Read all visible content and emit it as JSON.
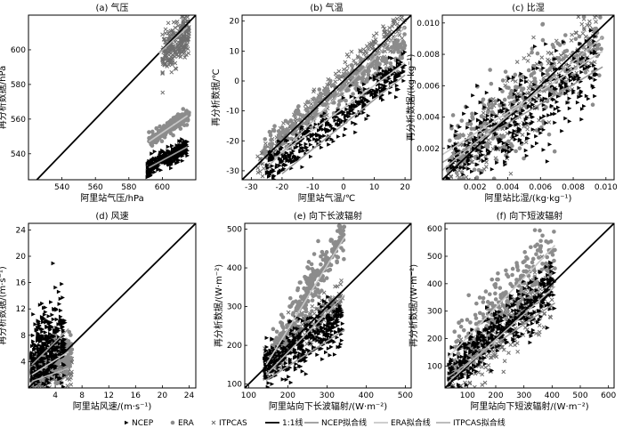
{
  "legend": [
    {
      "key": "ncep",
      "label": "NCEP",
      "kind": "marker",
      "marker": "triangle",
      "color": "#000000"
    },
    {
      "key": "era",
      "label": "ERA",
      "kind": "marker",
      "marker": "circle",
      "color": "#8c8c8c"
    },
    {
      "key": "itp",
      "label": "ITPCAS",
      "kind": "marker",
      "marker": "cross",
      "color": "#6e6e6e"
    },
    {
      "key": "one",
      "label": "1:1线",
      "kind": "line",
      "color": "#000000"
    },
    {
      "key": "ncepfit",
      "label": "NCEP拟合线",
      "kind": "line",
      "color": "#9a9a9a"
    },
    {
      "key": "erafit",
      "label": "ERA拟合线",
      "kind": "line",
      "color": "#c8c8c8"
    },
    {
      "key": "itpfit",
      "label": "ITPCAS拟合线",
      "kind": "line",
      "color": "#b4b4b4"
    }
  ],
  "chart_data": [
    {
      "id": "a",
      "type": "scatter",
      "title": "(a) 气压",
      "xlabel": "阿里站气压/hPa",
      "ylabel": "再分析数据/hPa",
      "xlim": [
        520,
        620
      ],
      "ylim": [
        525,
        620
      ],
      "xticks": [
        540,
        560,
        580,
        600
      ],
      "yticks": [
        540,
        560,
        580,
        600
      ],
      "xtick_labels": [
        "540",
        "560",
        "580",
        "600"
      ],
      "ytick_labels": [
        "540",
        "560",
        "580",
        "600"
      ],
      "series": [
        {
          "key": "itp",
          "cluster": {
            "x": [
              600,
              616
            ],
            "y_at_x0": 596,
            "slope": 1.0,
            "spread": 6,
            "n": 260
          }
        },
        {
          "key": "era",
          "cluster": {
            "x": [
              592,
              616
            ],
            "y_at_x0": 547,
            "slope": 0.65,
            "spread": 2,
            "n": 220
          }
        },
        {
          "key": "ncep",
          "cluster": {
            "x": [
              591,
              615
            ],
            "y_at_x0": 531,
            "slope": 0.55,
            "spread": 2.5,
            "n": 320
          }
        }
      ],
      "fits": [
        {
          "key": "ncepfit",
          "x": [
            592,
            615
          ],
          "y": [
            532,
            544
          ]
        },
        {
          "key": "erafit",
          "x": [
            592,
            615
          ],
          "y": [
            547,
            562
          ]
        },
        {
          "key": "itpfit",
          "x": [
            598,
            615
          ],
          "y": [
            598,
            613
          ]
        }
      ]
    },
    {
      "id": "b",
      "type": "scatter",
      "title": "(b) 气温",
      "xlabel": "阿里站气温/℃",
      "ylabel": "再分析数据/℃",
      "xlim": [
        -33,
        22
      ],
      "ylim": [
        -33,
        22
      ],
      "xticks": [
        -30,
        -20,
        -10,
        0,
        10,
        20
      ],
      "yticks": [
        -30,
        -20,
        -10,
        0,
        10,
        20
      ],
      "xtick_labels": [
        "-30",
        "-20",
        "-10",
        "0",
        "10",
        "20"
      ],
      "ytick_labels": [
        "-30",
        "-20",
        "-10",
        "0",
        "10",
        "20"
      ],
      "series": [
        {
          "key": "itp",
          "cluster": {
            "x": [
              -28,
              20
            ],
            "y_at_x0": -28,
            "slope": 1.0,
            "spread": 3,
            "n": 320
          }
        },
        {
          "key": "era",
          "cluster": {
            "x": [
              -26,
              20
            ],
            "y_at_x0": -23,
            "slope": 0.75,
            "spread": 3,
            "n": 300
          }
        },
        {
          "key": "ncep",
          "cluster": {
            "x": [
              -25,
              20
            ],
            "y_at_x0": -30,
            "slope": 0.75,
            "spread": 3,
            "n": 380
          }
        }
      ],
      "fits": [
        {
          "key": "ncepfit",
          "x": [
            -20,
            20
          ],
          "y": [
            -31,
            2
          ]
        },
        {
          "key": "erafit",
          "x": [
            -20,
            20
          ],
          "y": [
            -24,
            6
          ]
        },
        {
          "key": "itpfit",
          "x": [
            -24,
            20
          ],
          "y": [
            -28,
            18
          ]
        }
      ]
    },
    {
      "id": "c",
      "type": "scatter",
      "title": "(c) 比湿",
      "xlabel": "阿里站比湿/(kg·kg⁻¹)",
      "ylabel": "再分析数据/(kg·kg⁻¹)",
      "xlim": [
        0,
        0.0105
      ],
      "ylim": [
        0,
        0.0105
      ],
      "xticks": [
        0.002,
        0.004,
        0.006,
        0.008,
        0.01
      ],
      "yticks": [
        0.002,
        0.004,
        0.006,
        0.008,
        0.01
      ],
      "xtick_labels": [
        "0.002",
        "0.004",
        "0.006",
        "0.008",
        "0.010"
      ],
      "ytick_labels": [
        "0.002",
        "0.004",
        "0.006",
        "0.008",
        "0.010"
      ],
      "series": [
        {
          "key": "itp",
          "cluster": {
            "x": [
              0.0003,
              0.0095
            ],
            "y_at_x0": 0.0003,
            "slope": 0.95,
            "spread": 0.0012,
            "n": 300
          }
        },
        {
          "key": "era",
          "cluster": {
            "x": [
              0.0003,
              0.0098
            ],
            "y_at_x0": 0.0012,
            "slope": 0.85,
            "spread": 0.0015,
            "n": 300
          }
        },
        {
          "key": "ncep",
          "cluster": {
            "x": [
              0.0003,
              0.0095
            ],
            "y_at_x0": 0.0008,
            "slope": 0.75,
            "spread": 0.0014,
            "n": 380
          }
        }
      ],
      "fits": [
        {
          "key": "ncepfit",
          "x": [
            0,
            0.0098
          ],
          "y": [
            0.0011,
            0.0072
          ]
        },
        {
          "key": "erafit",
          "x": [
            0,
            0.0098
          ],
          "y": [
            0.0016,
            0.0082
          ]
        },
        {
          "key": "itpfit",
          "x": [
            0,
            0.0098
          ],
          "y": [
            0.0006,
            0.0091
          ]
        }
      ]
    },
    {
      "id": "d",
      "type": "scatter",
      "title": "(d) 风速",
      "xlabel": "阿里站风速/(m·s⁻¹)",
      "ylabel": "再分析数据/(m·s⁻¹)",
      "xlim": [
        0,
        25
      ],
      "ylim": [
        0,
        25
      ],
      "xticks": [
        4,
        8,
        12,
        16,
        20,
        24
      ],
      "yticks": [
        4,
        8,
        12,
        16,
        20,
        24
      ],
      "xtick_labels": [
        "4",
        "8",
        "12",
        "16",
        "20",
        "24"
      ],
      "ytick_labels": [
        "4",
        "8",
        "12",
        "16",
        "20",
        "24"
      ],
      "series": [
        {
          "key": "itp",
          "cluster": {
            "x": [
              0.4,
              6.5
            ],
            "y_at_x0": 1.5,
            "slope": 0.3,
            "spread": 1.3,
            "n": 200
          }
        },
        {
          "key": "era",
          "cluster": {
            "x": [
              0.4,
              6.5
            ],
            "y_at_x0": 2.5,
            "slope": 0.5,
            "spread": 1.5,
            "n": 220
          }
        },
        {
          "key": "ncep",
          "cluster": {
            "x": [
              0.4,
              5.5
            ],
            "y_at_x0": 3.5,
            "slope": 0.9,
            "spread": 3.3,
            "n": 380
          }
        }
      ],
      "fits": [
        {
          "key": "ncepfit",
          "x": [
            0.5,
            6
          ],
          "y": [
            3.5,
            9
          ]
        },
        {
          "key": "erafit",
          "x": [
            0.5,
            6
          ],
          "y": [
            2,
            5.5
          ]
        },
        {
          "key": "itpfit",
          "x": [
            0.5,
            6
          ],
          "y": [
            1,
            3
          ]
        }
      ]
    },
    {
      "id": "e",
      "type": "scatter",
      "title": "(e) 向下长波辐射",
      "xlabel": "阿里站向下长波辐射/(W·m⁻²)",
      "ylabel": "再分析数据/(W·m⁻²)",
      "xlim": [
        90,
        515
      ],
      "ylim": [
        90,
        515
      ],
      "xticks": [
        100,
        200,
        300,
        400,
        500
      ],
      "yticks": [
        100,
        200,
        300,
        400,
        500
      ],
      "xtick_labels": [
        "100",
        "200",
        "300",
        "400",
        "500"
      ],
      "ytick_labels": [
        "100",
        "200",
        "300",
        "400",
        "500"
      ],
      "series": [
        {
          "key": "itp",
          "cluster": {
            "x": [
              140,
              340
            ],
            "y_at_x0": 150,
            "slope": 0.85,
            "spread": 25,
            "n": 280
          }
        },
        {
          "key": "era",
          "cluster": {
            "x": [
              160,
              345
            ],
            "y_at_x0": 180,
            "slope": 1.7,
            "spread": 30,
            "n": 300
          }
        },
        {
          "key": "ncep",
          "cluster": {
            "x": [
              140,
              340
            ],
            "y_at_x0": 145,
            "slope": 0.6,
            "spread": 30,
            "n": 380
          }
        }
      ],
      "fits": [
        {
          "key": "ncepfit",
          "x": [
            145,
            345
          ],
          "y": [
            110,
            240
          ]
        },
        {
          "key": "erafit",
          "x": [
            145,
            345
          ],
          "y": [
            150,
            480
          ]
        },
        {
          "key": "itpfit",
          "x": [
            145,
            345
          ],
          "y": [
            125,
            330
          ]
        }
      ]
    },
    {
      "id": "f",
      "type": "scatter",
      "title": "(f) 向下短波辐射",
      "xlabel": "阿里站向下短波辐射/(W·m⁻²)",
      "ylabel": "再分析数据/(W·m⁻²)",
      "xlim": [
        20,
        620
      ],
      "ylim": [
        20,
        620
      ],
      "xticks": [
        100,
        200,
        300,
        400,
        500,
        600
      ],
      "yticks": [
        100,
        200,
        300,
        400,
        500,
        600
      ],
      "xtick_labels": [
        "100",
        "200",
        "300",
        "400",
        "500",
        "600"
      ],
      "ytick_labels": [
        "100",
        "200",
        "300",
        "400",
        "500",
        "600"
      ],
      "series": [
        {
          "key": "itp",
          "cluster": {
            "x": [
              40,
              400
            ],
            "y_at_x0": 40,
            "slope": 0.95,
            "spread": 55,
            "n": 300
          }
        },
        {
          "key": "era",
          "cluster": {
            "x": [
              50,
              410
            ],
            "y_at_x0": 130,
            "slope": 1.1,
            "spread": 60,
            "n": 300
          }
        },
        {
          "key": "ncep",
          "cluster": {
            "x": [
              30,
              410
            ],
            "y_at_x0": 70,
            "slope": 0.85,
            "spread": 45,
            "n": 400
          }
        }
      ],
      "fits": [
        {
          "key": "ncepfit",
          "x": [
            30,
            410
          ],
          "y": [
            60,
            330
          ]
        },
        {
          "key": "erafit",
          "x": [
            30,
            410
          ],
          "y": [
            130,
            540
          ]
        },
        {
          "key": "itpfit",
          "x": [
            30,
            410
          ],
          "y": [
            40,
            390
          ]
        }
      ]
    }
  ]
}
